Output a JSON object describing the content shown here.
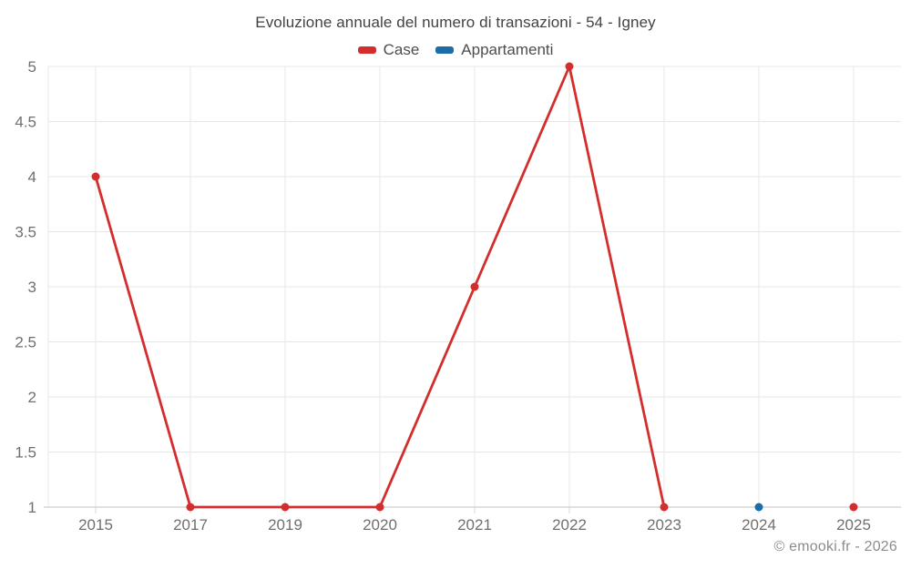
{
  "chart_data": {
    "type": "line",
    "title": "Evoluzione annuale del numero di transazioni - 54 - Igney",
    "categories": [
      "2015",
      "2017",
      "2019",
      "2020",
      "2021",
      "2022",
      "2023",
      "2024",
      "2025"
    ],
    "series": [
      {
        "name": "Case",
        "color": "#d32d2d",
        "values": [
          4,
          1,
          1,
          1,
          3,
          5,
          1,
          null,
          1
        ]
      },
      {
        "name": "Appartamenti",
        "color": "#1a6da8",
        "values": [
          null,
          null,
          null,
          null,
          null,
          null,
          null,
          1,
          null
        ]
      }
    ],
    "yticks": [
      1,
      1.5,
      2,
      2.5,
      3,
      3.5,
      4,
      4.5,
      5
    ],
    "ylim": [
      1,
      5
    ],
    "grid": true,
    "legend_position": "top",
    "marker_radius": 4.5,
    "line_width": 2.8
  },
  "footer": {
    "text": "© emooki.fr - 2026"
  },
  "colors": {
    "grid": "#e7e7e7",
    "axis_line": "#cfcfcf",
    "tick": "#d9d9d9",
    "tick_label": "#6f6f6f"
  }
}
